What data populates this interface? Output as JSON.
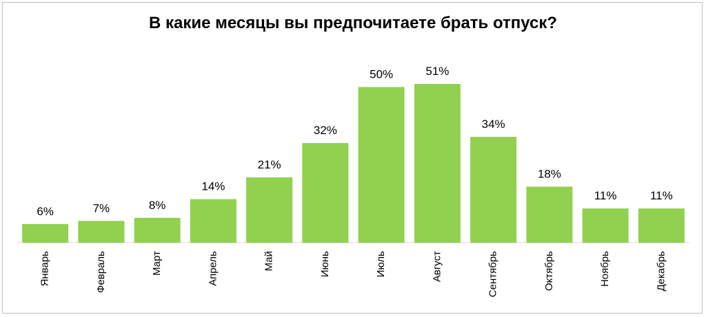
{
  "chart_data": {
    "type": "bar",
    "title": "В какие месяцы вы предпочитаете брать отпуск?",
    "categories": [
      "Январь",
      "Февраль",
      "Март",
      "Апрель",
      "Май",
      "Июнь",
      "Июль",
      "Август",
      "Сентябрь",
      "Октябрь",
      "Ноябрь",
      "Декабрь"
    ],
    "values": [
      6,
      7,
      8,
      14,
      21,
      32,
      50,
      51,
      34,
      18,
      11,
      11
    ],
    "value_labels": [
      "6%",
      "7%",
      "8%",
      "14%",
      "21%",
      "32%",
      "50%",
      "51%",
      "34%",
      "18%",
      "11%",
      "11%"
    ],
    "ylim": [
      0,
      51
    ],
    "grid": false,
    "legend": "none",
    "colors": {
      "bar": "#92d050",
      "axis": "#d9d9d9"
    }
  }
}
